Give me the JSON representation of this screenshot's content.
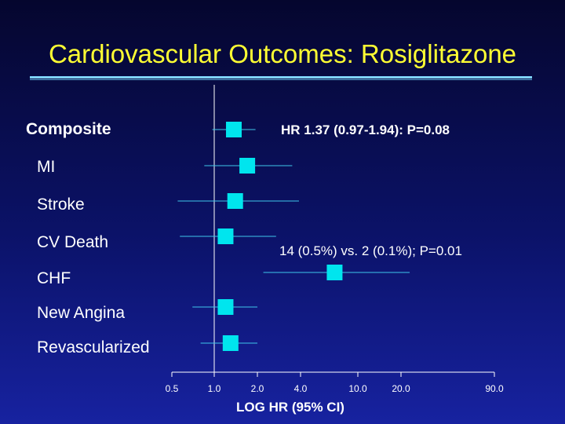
{
  "slide": {
    "title": "Cardiovascular Outcomes: Rosiglitazone",
    "annotations": {
      "composite": "HR 1.37 (0.97-1.94): P=0.08",
      "cv_death": "14 (0.5%) vs. 2 (0.1%); P=0.01"
    }
  },
  "chart_data": {
    "type": "scatter",
    "subtype": "forest-plot",
    "title": "",
    "xlabel": "LOG HR (95% CI)",
    "ylabel": "",
    "x_scale": "log",
    "xlim": [
      0.5,
      90.0
    ],
    "x_ticks": [
      0.5,
      1.0,
      2.0,
      4.0,
      10.0,
      20.0,
      90.0
    ],
    "x_tick_labels": [
      "0.5",
      "1.0",
      "2.0",
      "4.0",
      "10.0",
      "20.0",
      "90.0"
    ],
    "reference_line": 1.0,
    "grid": false,
    "legend": "none",
    "marker_color": "#00e5ee",
    "rows": [
      {
        "label": "Composite",
        "bold": true,
        "hr": 1.37,
        "ci_low": 0.97,
        "ci_high": 1.94
      },
      {
        "label": "MI",
        "bold": false,
        "hr": 1.7,
        "ci_low": 0.85,
        "ci_high": 3.5
      },
      {
        "label": "Stroke",
        "bold": false,
        "hr": 1.4,
        "ci_low": 0.55,
        "ci_high": 3.9
      },
      {
        "label": "CV Death",
        "bold": false,
        "hr": 1.2,
        "ci_low": 0.57,
        "ci_high": 2.7
      },
      {
        "label": "CHF",
        "bold": false,
        "hr": 6.9,
        "ci_low": 2.2,
        "ci_high": 23.0
      },
      {
        "label": "New Angina",
        "bold": false,
        "hr": 1.2,
        "ci_low": 0.7,
        "ci_high": 2.0
      },
      {
        "label": "Revascularized",
        "bold": false,
        "hr": 1.3,
        "ci_low": 0.8,
        "ci_high": 2.0
      }
    ]
  }
}
